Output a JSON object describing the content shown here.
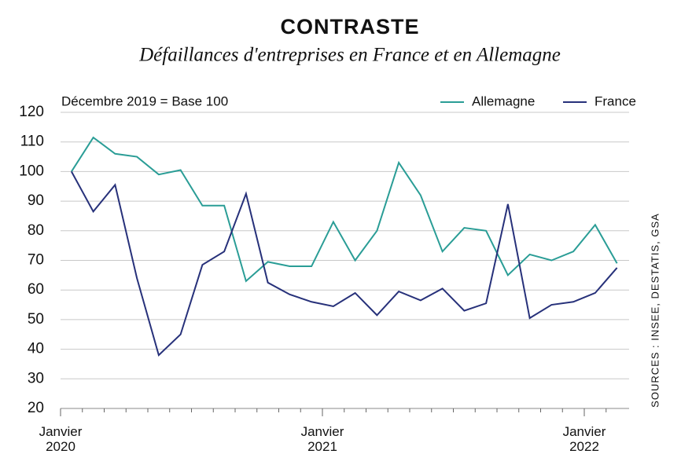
{
  "chart_data": {
    "type": "line",
    "title": "CONTRASTE",
    "subtitle": "Défaillances d'entreprises en France et en Allemagne",
    "annotation": "Décembre 2019 = Base 100",
    "source": "SOURCES : INSEE, DESTATIS, GSA",
    "categories": [
      "Janvier\n2020",
      null,
      null,
      null,
      null,
      null,
      null,
      null,
      null,
      null,
      null,
      null,
      "Janvier\n2021",
      null,
      null,
      null,
      null,
      null,
      null,
      null,
      null,
      null,
      null,
      null,
      "Janvier\n2022",
      null
    ],
    "series": [
      {
        "name": "Allemagne",
        "color": "#2a9d96",
        "values": [
          100,
          111.5,
          106,
          105,
          99,
          100.5,
          88.5,
          88.5,
          63,
          69.5,
          68,
          68,
          83,
          70,
          80,
          103,
          92,
          73,
          81,
          80,
          65,
          72,
          70,
          73,
          82,
          69
        ]
      },
      {
        "name": "France",
        "color": "#27317a",
        "values": [
          100,
          86.5,
          95.5,
          64,
          38,
          45,
          68.5,
          73,
          92.5,
          62.5,
          58.5,
          56,
          54.5,
          59,
          51.5,
          59.5,
          56.5,
          60.5,
          53,
          55.5,
          89,
          50.5,
          55,
          56,
          59,
          67.5
        ]
      }
    ],
    "ylim": [
      20,
      120
    ],
    "yticks": [
      20,
      30,
      40,
      50,
      60,
      70,
      80,
      90,
      100,
      110,
      120
    ],
    "grid": true
  }
}
